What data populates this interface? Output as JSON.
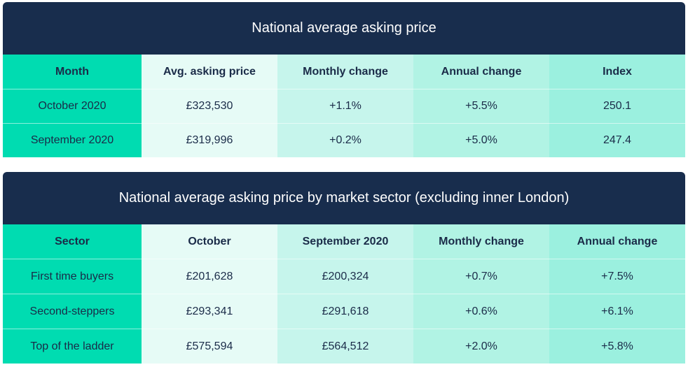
{
  "table1": {
    "title": "National average asking price",
    "headers": [
      "Month",
      "Avg. asking price",
      "Monthly change",
      "Annual change",
      "Index"
    ],
    "rows": [
      [
        "October 2020",
        "£323,530",
        "+1.1%",
        "+5.5%",
        "250.1"
      ],
      [
        "September 2020",
        "£319,996",
        "+0.2%",
        "+5.0%",
        "247.4"
      ]
    ]
  },
  "table2": {
    "title": "National average asking price by market sector (excluding inner London)",
    "headers": [
      "Sector",
      "October",
      "September 2020",
      "Monthly change",
      "Annual change"
    ],
    "rows": [
      [
        "First time buyers",
        "£201,628",
        "£200,324",
        "+0.7%",
        "+7.5%"
      ],
      [
        "Second-steppers",
        "£293,341",
        "£291,618",
        "+0.6%",
        "+6.1%"
      ],
      [
        "Top of the ladder",
        "£575,594",
        "£564,512",
        "+2.0%",
        "+5.8%"
      ]
    ]
  },
  "colors": {
    "header_navy": "#182d4d",
    "first_column": "#00dcb1",
    "column_shades": [
      "#e6fbf6",
      "#c6f5ec",
      "#b1f3e4",
      "#9bf0df"
    ]
  }
}
